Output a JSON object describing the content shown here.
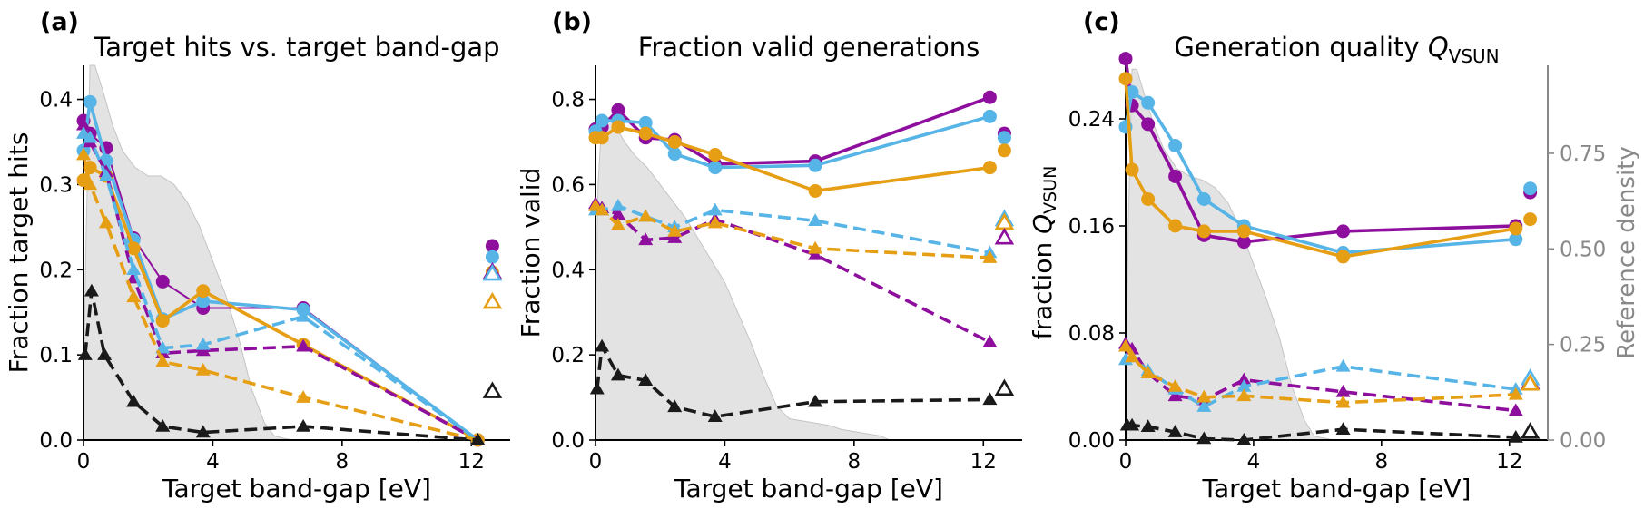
{
  "figure": {
    "colors": {
      "purple": "#8e0f9d",
      "blue": "#57b4e6",
      "orange": "#e69e14",
      "black": "#1a1a1a",
      "density_fill": "#e3e3e3",
      "density_edge": "#c4c4c4",
      "right_axis": "#888888"
    }
  },
  "chart_data": [
    {
      "type": "line",
      "panel_label": "(a)",
      "title": "Target hits vs. target band-gap",
      "xlabel": "Target band-gap [eV]",
      "ylabel": "Fraction target hits",
      "xlim": [
        0,
        13.2
      ],
      "ylim": [
        0,
        0.44
      ],
      "xticks": [
        0,
        4,
        8,
        12
      ],
      "xtick_labels": [
        "0",
        "4",
        "8",
        "12"
      ],
      "yticks": [
        0,
        0.1,
        0.2,
        0.3,
        0.4
      ],
      "ytick_labels": [
        "0.0",
        "0.1",
        "0.2",
        "0.3",
        "0.4"
      ],
      "density": {
        "x": [
          0,
          0.08,
          0.2,
          0.35,
          0.6,
          0.9,
          1.2,
          1.6,
          2.0,
          2.4,
          2.8,
          3.2,
          3.6,
          4.0,
          4.4,
          4.8,
          5.2,
          5.6,
          5.9,
          6.2,
          6.5,
          7.0
        ],
        "y": [
          0.06,
          0.24,
          0.44,
          0.44,
          0.41,
          0.37,
          0.34,
          0.32,
          0.31,
          0.31,
          0.3,
          0.28,
          0.25,
          0.21,
          0.17,
          0.12,
          0.06,
          0.02,
          0.005,
          0.002,
          0,
          0
        ]
      },
      "series": [
        {
          "name": "purple-solid",
          "color": "purple",
          "style": "solid",
          "marker": "circle",
          "x": [
            0,
            0.2,
            0.7,
            1.55,
            2.45,
            3.7,
            6.8,
            12.2
          ],
          "y": [
            0.375,
            0.36,
            0.343,
            0.237,
            0.186,
            0.155,
            0.155,
            0
          ]
        },
        {
          "name": "blue-solid",
          "color": "blue",
          "style": "solid",
          "marker": "circle",
          "x": [
            0,
            0.2,
            0.7,
            1.55,
            2.45,
            3.7,
            6.8,
            12.2
          ],
          "y": [
            0.34,
            0.397,
            0.328,
            0.235,
            0.142,
            0.163,
            0.153,
            0
          ]
        },
        {
          "name": "orange-solid",
          "color": "orange",
          "style": "solid",
          "marker": "circle",
          "x": [
            0,
            0.2,
            0.7,
            1.55,
            2.45,
            3.7,
            6.8,
            12.2
          ],
          "y": [
            0.305,
            0.32,
            0.31,
            0.225,
            0.14,
            0.175,
            0.112,
            0
          ]
        },
        {
          "name": "purple-dashed",
          "color": "purple",
          "style": "dashed",
          "marker": "triangle",
          "x": [
            0,
            0.2,
            0.7,
            1.55,
            2.45,
            3.7,
            6.8,
            12.2
          ],
          "y": [
            0.37,
            0.35,
            0.315,
            0.19,
            0.102,
            0.105,
            0.11,
            0
          ]
        },
        {
          "name": "blue-dashed",
          "color": "blue",
          "style": "dashed",
          "marker": "triangle",
          "x": [
            0,
            0.2,
            0.7,
            1.55,
            2.45,
            3.7,
            6.8,
            12.2
          ],
          "y": [
            0.36,
            0.355,
            0.31,
            0.2,
            0.108,
            0.112,
            0.145,
            0
          ]
        },
        {
          "name": "orange-dashed",
          "color": "orange",
          "style": "dashed",
          "marker": "triangle",
          "x": [
            0,
            0.2,
            0.7,
            1.55,
            2.45,
            3.7,
            6.8,
            12.2
          ],
          "y": [
            0.335,
            0.3,
            0.255,
            0.168,
            0.092,
            0.082,
            0.05,
            0
          ]
        },
        {
          "name": "black-dashed",
          "color": "black",
          "style": "dashed",
          "marker": "triangle",
          "x": [
            0.05,
            0.25,
            0.65,
            1.55,
            2.45,
            3.7,
            6.8,
            12.2
          ],
          "y": [
            0.1,
            0.175,
            0.1,
            0.045,
            0.016,
            0.009,
            0.016,
            0
          ]
        }
      ],
      "reference_markers": [
        {
          "color": "purple",
          "marker": "circle",
          "filled": true,
          "y": 0.228
        },
        {
          "color": "blue",
          "marker": "circle",
          "filled": true,
          "y": 0.215
        },
        {
          "color": "orange",
          "marker": "circle",
          "filled": true,
          "y": 0.197
        },
        {
          "color": "purple",
          "marker": "triangle",
          "filled": false,
          "y": 0.197
        },
        {
          "color": "blue",
          "marker": "triangle",
          "filled": false,
          "y": 0.195
        },
        {
          "color": "orange",
          "marker": "triangle",
          "filled": false,
          "y": 0.162
        },
        {
          "color": "black",
          "marker": "triangle",
          "filled": false,
          "y": 0.057
        }
      ]
    },
    {
      "type": "line",
      "panel_label": "(b)",
      "title": "Fraction valid generations",
      "xlabel": "Target band-gap [eV]",
      "ylabel": "Fraction valid",
      "xlim": [
        0,
        13.2
      ],
      "ylim": [
        0,
        0.88
      ],
      "xticks": [
        0,
        4,
        8,
        12
      ],
      "xtick_labels": [
        "0",
        "4",
        "8",
        "12"
      ],
      "yticks": [
        0,
        0.2,
        0.4,
        0.6,
        0.8
      ],
      "ytick_labels": [
        "0.0",
        "0.2",
        "0.4",
        "0.6",
        "0.8"
      ],
      "density": {
        "x": [
          0,
          0.08,
          0.2,
          0.35,
          0.6,
          0.9,
          1.2,
          1.6,
          2.0,
          2.4,
          2.8,
          3.2,
          3.6,
          4.0,
          4.4,
          4.8,
          5.2,
          5.6,
          6.0,
          6.4,
          6.8,
          7.2,
          7.6,
          8.0,
          8.4,
          8.8,
          9.1
        ],
        "y": [
          0.3,
          0.6,
          0.76,
          0.76,
          0.74,
          0.7,
          0.67,
          0.64,
          0.6,
          0.56,
          0.52,
          0.47,
          0.42,
          0.37,
          0.3,
          0.23,
          0.15,
          0.08,
          0.05,
          0.045,
          0.04,
          0.035,
          0.025,
          0.02,
          0.015,
          0.01,
          0
        ]
      },
      "series": [
        {
          "name": "purple-solid",
          "color": "purple",
          "style": "solid",
          "marker": "circle",
          "x": [
            0,
            0.2,
            0.7,
            1.55,
            2.45,
            3.7,
            6.8,
            12.2
          ],
          "y": [
            0.73,
            0.735,
            0.775,
            0.71,
            0.705,
            0.648,
            0.655,
            0.805
          ]
        },
        {
          "name": "blue-solid",
          "color": "blue",
          "style": "solid",
          "marker": "circle",
          "x": [
            0,
            0.2,
            0.7,
            1.55,
            2.45,
            3.7,
            6.8,
            12.2
          ],
          "y": [
            0.725,
            0.75,
            0.75,
            0.745,
            0.672,
            0.64,
            0.645,
            0.76
          ]
        },
        {
          "name": "orange-solid",
          "color": "orange",
          "style": "solid",
          "marker": "circle",
          "x": [
            0,
            0.2,
            0.7,
            1.55,
            2.45,
            3.7,
            6.8,
            12.2
          ],
          "y": [
            0.71,
            0.71,
            0.735,
            0.72,
            0.7,
            0.67,
            0.585,
            0.64
          ]
        },
        {
          "name": "purple-dashed",
          "color": "purple",
          "style": "dashed",
          "marker": "triangle",
          "x": [
            0,
            0.2,
            0.7,
            1.55,
            2.45,
            3.7,
            6.8,
            12.2
          ],
          "y": [
            0.555,
            0.545,
            0.53,
            0.47,
            0.475,
            0.518,
            0.435,
            0.23
          ]
        },
        {
          "name": "blue-dashed",
          "color": "blue",
          "style": "dashed",
          "marker": "triangle",
          "x": [
            0,
            0.2,
            0.7,
            1.55,
            2.45,
            3.7,
            6.8,
            12.2
          ],
          "y": [
            0.54,
            0.54,
            0.55,
            0.525,
            0.5,
            0.54,
            0.515,
            0.44
          ]
        },
        {
          "name": "orange-dashed",
          "color": "orange",
          "style": "dashed",
          "marker": "triangle",
          "x": [
            0,
            0.2,
            0.7,
            1.55,
            2.45,
            3.7,
            6.8,
            12.2
          ],
          "y": [
            0.55,
            0.54,
            0.505,
            0.525,
            0.49,
            0.51,
            0.45,
            0.428
          ]
        },
        {
          "name": "black-dashed",
          "color": "black",
          "style": "dashed",
          "marker": "triangle",
          "x": [
            0.05,
            0.2,
            0.7,
            1.55,
            2.45,
            3.7,
            6.8,
            12.2
          ],
          "y": [
            0.12,
            0.22,
            0.152,
            0.14,
            0.078,
            0.055,
            0.09,
            0.095
          ]
        }
      ],
      "reference_markers": [
        {
          "color": "purple",
          "marker": "circle",
          "filled": true,
          "y": 0.72
        },
        {
          "color": "blue",
          "marker": "circle",
          "filled": true,
          "y": 0.71
        },
        {
          "color": "orange",
          "marker": "circle",
          "filled": true,
          "y": 0.68
        },
        {
          "color": "blue",
          "marker": "triangle",
          "filled": false,
          "y": 0.518
        },
        {
          "color": "orange",
          "marker": "triangle",
          "filled": false,
          "y": 0.51
        },
        {
          "color": "purple",
          "marker": "triangle",
          "filled": false,
          "y": 0.475
        },
        {
          "color": "black",
          "marker": "triangle",
          "filled": false,
          "y": 0.12
        }
      ]
    },
    {
      "type": "line",
      "panel_label": "(c)",
      "title": "Generation quality ",
      "title_math": "Q",
      "title_sub": "VSUN",
      "xlabel": "Target band-gap [eV]",
      "ylabel": "fraction ",
      "ylabel_math": "Q",
      "ylabel_sub": "VSUN",
      "xlim": [
        0,
        13.2
      ],
      "ylim": [
        0,
        0.28
      ],
      "xticks": [
        0,
        4,
        8,
        12
      ],
      "xtick_labels": [
        "0",
        "4",
        "8",
        "12"
      ],
      "yticks": [
        0,
        0.08,
        0.16,
        0.24
      ],
      "ytick_labels": [
        "0.00",
        "0.08",
        "0.16",
        "0.24"
      ],
      "right_axis": {
        "label": "Reference density",
        "ylim": [
          0,
          0.98
        ],
        "ticks": [
          0,
          0.25,
          0.5,
          0.75
        ],
        "tick_labels": [
          "0.00",
          "0.25",
          "0.50",
          "0.75"
        ]
      },
      "density": {
        "x": [
          0,
          0.08,
          0.2,
          0.35,
          0.6,
          0.9,
          1.2,
          1.6,
          2.0,
          2.4,
          2.8,
          3.2,
          3.6,
          4.0,
          4.4,
          4.8,
          5.2,
          5.6,
          5.9,
          6.2,
          6.5,
          7.0
        ],
        "y": [
          0.14,
          0.55,
          0.97,
          0.97,
          0.9,
          0.82,
          0.76,
          0.71,
          0.69,
          0.68,
          0.66,
          0.62,
          0.55,
          0.46,
          0.37,
          0.27,
          0.14,
          0.05,
          0.01,
          0.005,
          0,
          0
        ]
      },
      "series": [
        {
          "name": "purple-solid",
          "color": "purple",
          "style": "solid",
          "marker": "circle",
          "x": [
            0,
            0.2,
            0.7,
            1.55,
            2.45,
            3.7,
            6.8,
            12.2
          ],
          "y": [
            0.285,
            0.25,
            0.236,
            0.197,
            0.153,
            0.148,
            0.156,
            0.16
          ]
        },
        {
          "name": "blue-solid",
          "color": "blue",
          "style": "solid",
          "marker": "circle",
          "x": [
            0,
            0.2,
            0.7,
            1.55,
            2.45,
            3.7,
            6.8,
            12.2
          ],
          "y": [
            0.234,
            0.26,
            0.252,
            0.22,
            0.18,
            0.16,
            0.14,
            0.15
          ]
        },
        {
          "name": "orange-solid",
          "color": "orange",
          "style": "solid",
          "marker": "circle",
          "x": [
            0,
            0.2,
            0.7,
            1.55,
            2.45,
            3.7,
            6.8,
            12.2
          ],
          "y": [
            0.27,
            0.202,
            0.18,
            0.16,
            0.156,
            0.156,
            0.137,
            0.158
          ]
        },
        {
          "name": "purple-dashed",
          "color": "purple",
          "style": "dashed",
          "marker": "triangle",
          "x": [
            0,
            0.2,
            0.7,
            1.55,
            2.45,
            3.7,
            6.8,
            12.2
          ],
          "y": [
            0.072,
            0.068,
            0.05,
            0.033,
            0.03,
            0.045,
            0.036,
            0.022
          ]
        },
        {
          "name": "blue-dashed",
          "color": "blue",
          "style": "dashed",
          "marker": "triangle",
          "x": [
            0,
            0.2,
            0.7,
            1.55,
            2.45,
            3.7,
            6.8,
            12.2
          ],
          "y": [
            0.06,
            0.062,
            0.052,
            0.038,
            0.025,
            0.04,
            0.055,
            0.038
          ]
        },
        {
          "name": "orange-dashed",
          "color": "orange",
          "style": "dashed",
          "marker": "triangle",
          "x": [
            0,
            0.2,
            0.7,
            1.55,
            2.45,
            3.7,
            6.8,
            12.2
          ],
          "y": [
            0.07,
            0.062,
            0.05,
            0.04,
            0.032,
            0.033,
            0.028,
            0.034
          ]
        },
        {
          "name": "black-dashed",
          "color": "black",
          "style": "dashed",
          "marker": "triangle",
          "x": [
            0.05,
            0.2,
            0.7,
            1.55,
            2.45,
            3.7,
            6.8,
            12.2
          ],
          "y": [
            0.011,
            0.011,
            0.01,
            0.006,
            0.001,
            0,
            0.008,
            0.002
          ]
        }
      ],
      "reference_markers": [
        {
          "color": "purple",
          "marker": "circle",
          "filled": true,
          "y": 0.185
        },
        {
          "color": "blue",
          "marker": "circle",
          "filled": true,
          "y": 0.188
        },
        {
          "color": "orange",
          "marker": "circle",
          "filled": true,
          "y": 0.165
        },
        {
          "color": "purple",
          "marker": "triangle",
          "filled": false,
          "y": 0.043
        },
        {
          "color": "blue",
          "marker": "triangle",
          "filled": false,
          "y": 0.046
        },
        {
          "color": "orange",
          "marker": "triangle",
          "filled": false,
          "y": 0.042
        },
        {
          "color": "black",
          "marker": "triangle",
          "filled": false,
          "y": 0.006
        }
      ]
    }
  ]
}
